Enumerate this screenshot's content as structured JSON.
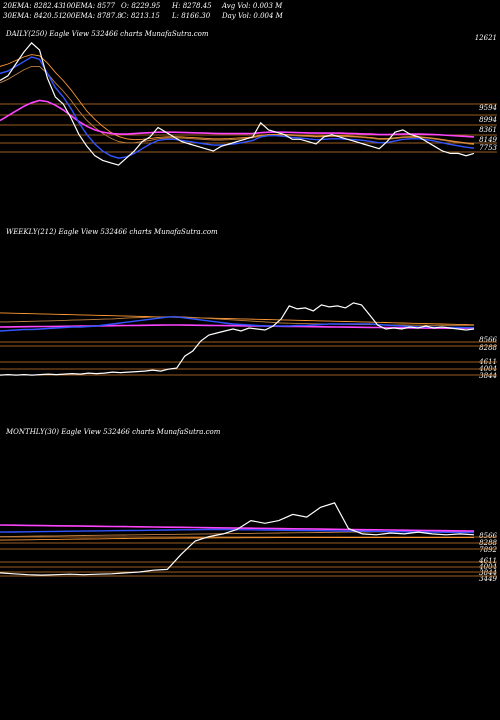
{
  "header": {
    "ema20": "20EMA: 8282.43",
    "ema100": "100EMA: 8577",
    "open": "O: 8229.95",
    "high": "H: 8278.45",
    "avg_vol": "Avg Vol: 0.003  M",
    "ema30": "30EMA: 8420.51",
    "ema200": "200EMA: 8787.8",
    "close": "C: 8213.15",
    "low": "L: 8166.30",
    "day_vol": "Day Vol: 0.004  M"
  },
  "colors": {
    "background": "#000000",
    "price": "#ffffff",
    "ema20": "#3355ff",
    "ema30": "#ff44ff",
    "ema100": "#c08040",
    "ema200": "#ff9933",
    "level": "#d07a2a",
    "pink": "#ff33cc"
  },
  "chart_data": [
    {
      "type": "line",
      "title": "DAILY(250) Eagle  View  532466  charts MunafaSutra.com",
      "y_labels": [
        "12621",
        "9594",
        "8994",
        "8361",
        "8149",
        "7753"
      ],
      "series": [
        {
          "name": "Price",
          "values": [
            10900,
            11100,
            11600,
            12100,
            12500,
            12200,
            11000,
            10200,
            9900,
            9300,
            8600,
            8100,
            7700,
            7500,
            7400,
            7300,
            7600,
            7900,
            8300,
            8500,
            8900,
            8700,
            8500,
            8300,
            8200,
            8100,
            8000,
            7900,
            8100,
            8200,
            8300,
            8400,
            8500,
            9100,
            8800,
            8700,
            8600,
            8400,
            8400,
            8300,
            8200,
            8500,
            8600,
            8500,
            8400,
            8300,
            8200,
            8100,
            8000,
            8300,
            8700,
            8800,
            8600,
            8500,
            8300,
            8100,
            7900,
            7800,
            7800,
            7700,
            7800
          ]
        },
        {
          "name": "20EMA",
          "values": [
            11200,
            11300,
            11500,
            11700,
            11900,
            11800,
            11200,
            10600,
            10200,
            9700,
            9100,
            8600,
            8200,
            7900,
            7700,
            7600,
            7650,
            7800,
            8000,
            8200,
            8350,
            8400,
            8400,
            8350,
            8300,
            8250,
            8200,
            8150,
            8150,
            8180,
            8220,
            8280,
            8350,
            8500,
            8550,
            8550,
            8520,
            8480,
            8450,
            8420,
            8380,
            8400,
            8420,
            8420,
            8400,
            8380,
            8350,
            8300,
            8250,
            8260,
            8330,
            8400,
            8420,
            8420,
            8380,
            8320,
            8250,
            8180,
            8120,
            8060,
            8020
          ]
        },
        {
          "name": "30EMA",
          "values": [
            9200,
            9400,
            9600,
            9800,
            9950,
            10050,
            10000,
            9850,
            9650,
            9400,
            9150,
            8950,
            8800,
            8700,
            8650,
            8620,
            8620,
            8640,
            8660,
            8680,
            8700,
            8700,
            8700,
            8690,
            8680,
            8670,
            8660,
            8650,
            8640,
            8640,
            8640,
            8640,
            8650,
            8680,
            8700,
            8700,
            8700,
            8690,
            8680,
            8670,
            8660,
            8660,
            8660,
            8660,
            8650,
            8640,
            8630,
            8620,
            8600,
            8600,
            8610,
            8620,
            8620,
            8620,
            8610,
            8600,
            8580,
            8560,
            8540,
            8520,
            8500
          ]
        },
        {
          "name": "100EMA",
          "values": [
            10800,
            10950,
            11150,
            11350,
            11500,
            11500,
            11200,
            10800,
            10450,
            10050,
            9600,
            9200,
            8900,
            8650,
            8450,
            8300,
            8250,
            8250,
            8300,
            8350,
            8420,
            8450,
            8460,
            8450,
            8430,
            8410,
            8390,
            8370,
            8370,
            8380,
            8400,
            8430,
            8460,
            8540,
            8570,
            8580,
            8580,
            8560,
            8540,
            8520,
            8500,
            8510,
            8520,
            8520,
            8510,
            8490,
            8470,
            8440,
            8400,
            8400,
            8430,
            8470,
            8480,
            8480,
            8450,
            8410,
            8360,
            8310,
            8260,
            8220,
            8180
          ]
        },
        {
          "name": "200EMA",
          "values": [
            11500,
            11600,
            11750,
            11900,
            12000,
            11950,
            11650,
            11250,
            10900,
            10500,
            10050,
            9600,
            9250,
            8950,
            8700,
            8520,
            8420,
            8380,
            8400,
            8430,
            8480,
            8500,
            8510,
            8500,
            8480,
            8460,
            8440,
            8420,
            8420,
            8430,
            8450,
            8470,
            8500,
            8570,
            8600,
            8610,
            8610,
            8590,
            8570,
            8550,
            8530,
            8540,
            8550,
            8550,
            8540,
            8520,
            8500,
            8470,
            8430,
            8430,
            8460,
            8500,
            8510,
            8510,
            8480,
            8440,
            8390,
            8340,
            8290,
            8250,
            8210
          ]
        }
      ]
    },
    {
      "type": "line",
      "title": "WEEKLY(212) Eagle  View  532466  charts MunafaSutra.com",
      "y_labels": [
        "8566",
        "8288",
        "4611",
        "4004",
        "3844"
      ],
      "series": [
        {
          "name": "Price",
          "values": [
            3600,
            3650,
            3600,
            3650,
            3600,
            3650,
            3700,
            3650,
            3700,
            3750,
            3700,
            3800,
            3750,
            3800,
            3900,
            3850,
            3900,
            3950,
            4000,
            4100,
            4000,
            4200,
            4300,
            5500,
            6000,
            7000,
            7600,
            7800,
            8000,
            8200,
            8000,
            8300,
            8200,
            8100,
            8500,
            9200,
            10500,
            10200,
            10300,
            10000,
            10600,
            10400,
            10500,
            10300,
            10800,
            10600,
            9600,
            8600,
            8200,
            8300,
            8200,
            8400,
            8300,
            8500,
            8300,
            8400,
            8300,
            8200,
            8100,
            8200
          ]
        },
        {
          "name": "20EMA",
          "values": [
            8000,
            8050,
            8100,
            8150,
            8150,
            8200,
            8250,
            8300,
            8350,
            8400,
            8400,
            8450,
            8500,
            8600,
            8700,
            8800,
            8900,
            9000,
            9100,
            9200,
            9300,
            9400,
            9400,
            9300,
            9200,
            9100,
            9000,
            8900,
            8800,
            8700,
            8650,
            8600,
            8550,
            8500,
            8500,
            8500,
            8500,
            8550,
            8550,
            8600,
            8650,
            8700,
            8700,
            8700,
            8700,
            8700,
            8700,
            8650,
            8600,
            8550,
            8500,
            8450,
            8400,
            8400,
            8380,
            8370,
            8360,
            8350,
            8340,
            8330
          ]
        },
        {
          "name": "30EMA",
          "values": [
            8400,
            8410,
            8420,
            8430,
            8440,
            8450,
            8450,
            8460,
            8470,
            8480,
            8490,
            8500,
            8510,
            8520,
            8530,
            8540,
            8550,
            8560,
            8570,
            8580,
            8590,
            8600,
            8600,
            8590,
            8580,
            8570,
            8560,
            8550,
            8540,
            8530,
            8520,
            8510,
            8500,
            8490,
            8480,
            8470,
            8460,
            8450,
            8440,
            8430,
            8420,
            8410,
            8400,
            8390,
            8380,
            8370,
            8360,
            8350,
            8340,
            8330,
            8320,
            8310,
            8300,
            8290,
            8285,
            8280,
            8280,
            8280,
            8285,
            8288
          ]
        },
        {
          "name": "100EMA",
          "values": [
            8900,
            8900,
            8920,
            8940,
            8960,
            8980,
            9000,
            9020,
            9050,
            9080,
            9100,
            9120,
            9150,
            9180,
            9200,
            9250,
            9300,
            9320,
            9350,
            9380,
            9400,
            9420,
            9420,
            9400,
            9350,
            9300,
            9250,
            9200,
            9150,
            9100,
            9050,
            9000,
            8950,
            8900,
            8850,
            8800,
            8780,
            8760,
            8740,
            8720,
            8700,
            8690,
            8680,
            8670,
            8660,
            8650,
            8640,
            8630,
            8620,
            8610,
            8600,
            8590,
            8580,
            8575,
            8570,
            8568,
            8566,
            8566,
            8566,
            8566
          ]
        },
        {
          "name": "200EMA",
          "values": [
            9800,
            9780,
            9760,
            9740,
            9720,
            9700,
            9680,
            9660,
            9640,
            9620,
            9600,
            9580,
            9560,
            9540,
            9520,
            9500,
            9480,
            9460,
            9440,
            9420,
            9400,
            9380,
            9360,
            9340,
            9320,
            9300,
            9280,
            9260,
            9240,
            9220,
            9200,
            9180,
            9160,
            9140,
            9120,
            9100,
            9080,
            9060,
            9040,
            9020,
            9000,
            8980,
            8960,
            8940,
            8920,
            8900,
            8880,
            8860,
            8840,
            8820,
            8800,
            8780,
            8760,
            8740,
            8720,
            8700,
            8680,
            8660,
            8640,
            8620
          ]
        }
      ]
    },
    {
      "type": "line",
      "title": "MONTHLY(30) Eagle  View  532466  charts MunafaSutra.com",
      "y_labels": [
        "8566",
        "8288",
        "7892",
        "4611",
        "4004",
        "3844",
        "3449"
      ],
      "series": [
        {
          "name": "Price",
          "values": [
            3900,
            3800,
            3700,
            3650,
            3700,
            3750,
            3700,
            3750,
            3800,
            3900,
            4000,
            4200,
            4300,
            6000,
            7500,
            8000,
            8300,
            8800,
            9800,
            9500,
            9800,
            10500,
            10200,
            11300,
            11800,
            8900,
            8300,
            8200,
            8400,
            8300,
            8500,
            8300,
            8200,
            8300,
            8200
          ]
        },
        {
          "name": "20EMA",
          "values": [
            8500,
            8520,
            8540,
            8560,
            8580,
            8600,
            8620,
            8640,
            8660,
            8680,
            8700,
            8720,
            8740,
            8760,
            8780,
            8800,
            8800,
            8780,
            8760,
            8740,
            8720,
            8700,
            8680,
            8660,
            8640,
            8620,
            8600,
            8580,
            8560,
            8540,
            8520,
            8500,
            8480,
            8470,
            8460
          ]
        },
        {
          "name": "30EMA",
          "values": [
            9300,
            9280,
            9260,
            9240,
            9220,
            9200,
            9180,
            9160,
            9140,
            9120,
            9100,
            9080,
            9060,
            9040,
            9020,
            9000,
            8980,
            8960,
            8940,
            8920,
            8900,
            8880,
            8860,
            8840,
            8820,
            8800,
            8780,
            8760,
            8740,
            8720,
            8700,
            8680,
            8660,
            8640,
            8620
          ]
        },
        {
          "name": "100EMA",
          "values": [
            8000,
            8020,
            8040,
            8060,
            8080,
            8100,
            8120,
            8140,
            8160,
            8180,
            8200,
            8220,
            8240,
            8260,
            8280,
            8300,
            8320,
            8340,
            8360,
            8380,
            8400,
            8420,
            8440,
            8460,
            8480,
            8500,
            8520,
            8540,
            8550,
            8560,
            8562,
            8564,
            8566,
            8566,
            8566
          ]
        },
        {
          "name": "200EMA",
          "values": [
            7600,
            7620,
            7640,
            7660,
            7680,
            7700,
            7720,
            7740,
            7760,
            7780,
            7800,
            7810,
            7820,
            7830,
            7840,
            7850,
            7860,
            7865,
            7870,
            7875,
            7880,
            7882,
            7884,
            7886,
            7888,
            7890,
            7891,
            7892,
            7892,
            7892,
            7892,
            7892,
            7892,
            7892,
            7892
          ]
        }
      ]
    }
  ]
}
